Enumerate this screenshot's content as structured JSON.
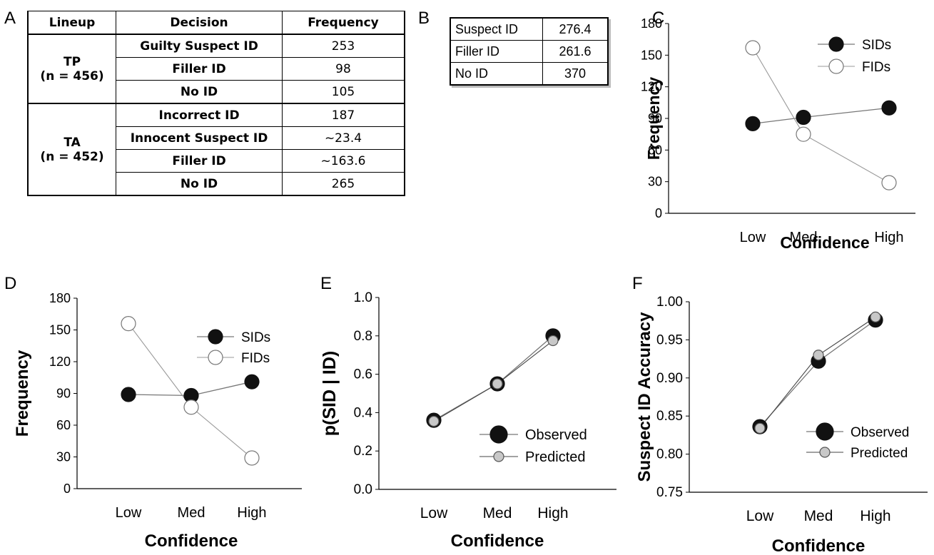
{
  "panel_labels": [
    "A",
    "B",
    "C",
    "D",
    "E",
    "F"
  ],
  "table_a": {
    "headers": [
      "Lineup",
      "Decision",
      "Frequency"
    ],
    "groups": [
      {
        "lineup": "TP",
        "n": "(n = 456)",
        "rows": [
          {
            "decision": "Guilty Suspect ID",
            "frequency": "253"
          },
          {
            "decision": "Filler ID",
            "frequency": "98"
          },
          {
            "decision": "No ID",
            "frequency": "105"
          }
        ]
      },
      {
        "lineup": "TA",
        "n": "(n = 452)",
        "rows": [
          {
            "decision": "Incorrect ID",
            "frequency": "187"
          },
          {
            "decision": "Innocent Suspect ID",
            "frequency": "~23.4"
          },
          {
            "decision": "Filler ID",
            "frequency": "~163.6"
          },
          {
            "decision": "No ID",
            "frequency": "265"
          }
        ]
      }
    ]
  },
  "table_b": {
    "rows": [
      {
        "label": "Suspect ID",
        "value": "276.4"
      },
      {
        "label": "Filler ID",
        "value": "261.6"
      },
      {
        "label": "No ID",
        "value": "370"
      }
    ]
  },
  "chart_data": [
    {
      "panel": "C",
      "type": "line",
      "x": [
        "Low",
        "Med",
        "High"
      ],
      "xlabel": "Confidence",
      "ylabel": "Frequency",
      "ylim": [
        0,
        180
      ],
      "yticks": [
        "0",
        "30",
        "60",
        "90",
        "120",
        "150",
        "180"
      ],
      "series": [
        {
          "name": "SIDs",
          "values": [
            85,
            91,
            100
          ],
          "marker": "filled-black"
        },
        {
          "name": "FIDs",
          "values": [
            157,
            75,
            29
          ],
          "marker": "open-white"
        }
      ],
      "legend": "top-right"
    },
    {
      "panel": "D",
      "type": "line",
      "x": [
        "Low",
        "Med",
        "High"
      ],
      "xlabel": "Confidence",
      "ylabel": "Frequency",
      "ylim": [
        0,
        180
      ],
      "yticks": [
        "0",
        "30",
        "60",
        "90",
        "120",
        "150",
        "180"
      ],
      "series": [
        {
          "name": "SIDs",
          "values": [
            89,
            88,
            101
          ],
          "marker": "filled-black"
        },
        {
          "name": "FIDs",
          "values": [
            156,
            77,
            29
          ],
          "marker": "open-white"
        }
      ],
      "legend": "top-right"
    },
    {
      "panel": "E",
      "type": "line",
      "x": [
        "Low",
        "Med",
        "High"
      ],
      "xlabel": "Confidence",
      "ylabel": "p(SID | ID)",
      "ylim": [
        0.0,
        1.0
      ],
      "yticks": [
        "0.0",
        "0.2",
        "0.4",
        "0.6",
        "0.8",
        "1.0"
      ],
      "series": [
        {
          "name": "Observed",
          "values": [
            0.36,
            0.55,
            0.8
          ],
          "marker": "filled-black"
        },
        {
          "name": "Predicted",
          "values": [
            0.355,
            0.55,
            0.775
          ],
          "marker": "filled-gray"
        }
      ],
      "legend": "bottom-right"
    },
    {
      "panel": "F",
      "type": "line",
      "x": [
        "Low",
        "Med",
        "High"
      ],
      "xlabel": "Confidence",
      "ylabel": "Suspect ID Accuracy",
      "ylim": [
        0.75,
        1.0
      ],
      "yticks": [
        "0.75",
        "0.80",
        "0.85",
        "0.90",
        "0.95",
        "1.00"
      ],
      "series": [
        {
          "name": "Observed",
          "values": [
            0.836,
            0.922,
            0.976
          ],
          "marker": "filled-black"
        },
        {
          "name": "Predicted",
          "values": [
            0.834,
            0.93,
            0.98
          ],
          "marker": "filled-gray"
        }
      ],
      "legend": "bottom-right"
    }
  ]
}
